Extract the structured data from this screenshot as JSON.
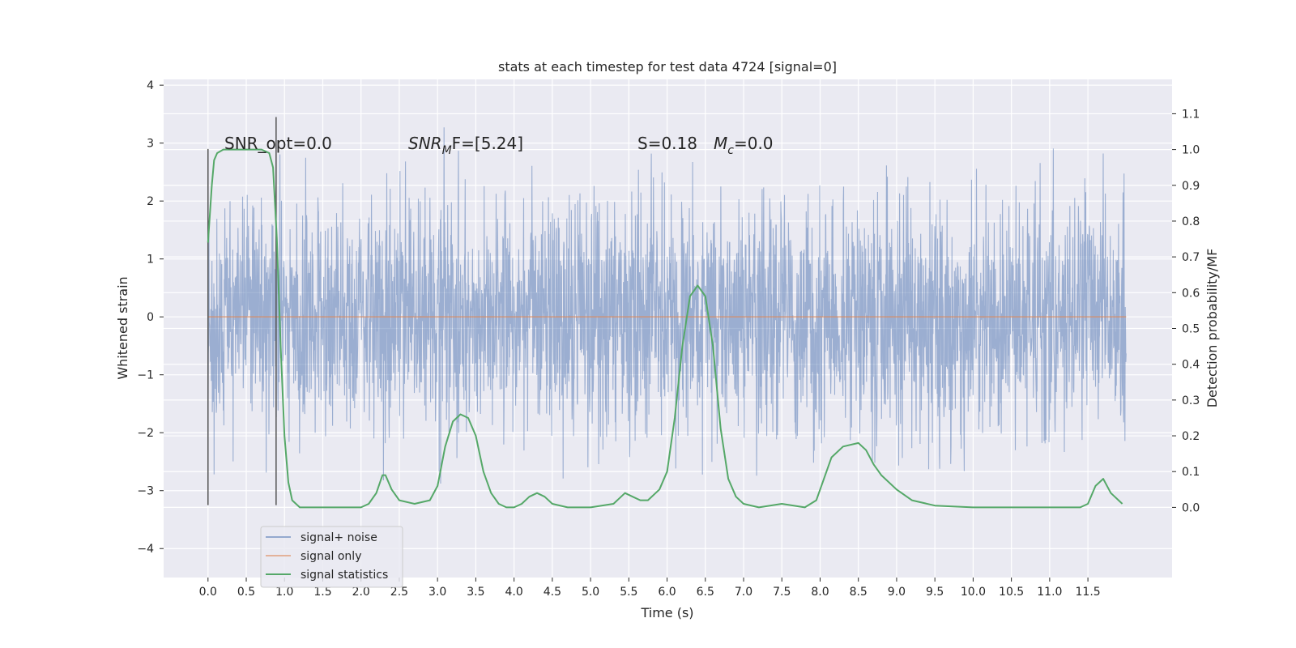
{
  "chart_data": {
    "type": "line",
    "title": "stats at each timestep for test data 4724 [signal=0]",
    "xlabel": "Time (s)",
    "ylabel": "Whitened strain",
    "y2label": "Detection probability/MF",
    "xlim": [
      -0.58,
      12.6
    ],
    "ylim": [
      -4.5,
      4.1
    ],
    "y2lim": [
      -0.196,
      1.196
    ],
    "x_ticks": [
      0.0,
      0.5,
      1.0,
      1.5,
      2.0,
      2.5,
      3.0,
      3.5,
      4.0,
      4.5,
      5.0,
      5.5,
      6.0,
      6.5,
      7.0,
      7.5,
      8.0,
      8.5,
      9.0,
      9.5,
      10.0,
      10.5,
      11.0,
      11.5
    ],
    "x_tick_labels": [
      "0.0",
      "0.5",
      "1.0",
      "1.5",
      "2.0",
      "2.5",
      "3.0",
      "3.5",
      "4.0",
      "4.5",
      "5.0",
      "5.5",
      "6.0",
      "6.5",
      "7.0",
      "7.5",
      "8.0",
      "8.5",
      "9.0",
      "9.5",
      "10.0",
      "10.5",
      "11.0",
      "11.5"
    ],
    "y_ticks": [
      -4,
      -3,
      -2,
      -1,
      0,
      1,
      2,
      3,
      4
    ],
    "y_tick_labels": [
      "−4",
      "−3",
      "−2",
      "−1",
      "0",
      "1",
      "2",
      "3",
      "4"
    ],
    "y2_ticks": [
      0.0,
      0.1,
      0.2,
      0.3,
      0.4,
      0.5,
      0.6,
      0.7,
      0.8,
      0.9,
      1.0,
      1.1
    ],
    "y2_tick_labels": [
      "0.0",
      "0.1",
      "0.2",
      "0.3",
      "0.4",
      "0.5",
      "0.6",
      "0.7",
      "0.8",
      "0.9",
      "1.0",
      "1.1"
    ],
    "grid": true,
    "legend_position": "bottom-left",
    "series": [
      {
        "name": "signal+ noise",
        "color": "#4c72b0",
        "axis": "left",
        "kind": "noise",
        "x_range": [
          0.0,
          12.0
        ],
        "amplitude_rms": 1.0,
        "y_extent": [
          -4.05,
          3.75
        ]
      },
      {
        "name": "signal only",
        "color": "#dd8452",
        "axis": "left",
        "x": [
          0.0,
          12.0
        ],
        "y": [
          0.0,
          0.0
        ]
      },
      {
        "name": "signal statistics",
        "color": "#55a868",
        "axis": "right",
        "x": [
          0.0,
          0.05,
          0.08,
          0.12,
          0.2,
          0.3,
          0.5,
          0.7,
          0.8,
          0.85,
          0.9,
          0.95,
          1.0,
          1.05,
          1.1,
          1.2,
          1.5,
          2.0,
          2.1,
          2.2,
          2.28,
          2.32,
          2.4,
          2.5,
          2.7,
          2.9,
          3.0,
          3.1,
          3.2,
          3.3,
          3.4,
          3.5,
          3.6,
          3.7,
          3.8,
          3.9,
          4.0,
          4.1,
          4.2,
          4.3,
          4.4,
          4.5,
          4.7,
          5.0,
          5.3,
          5.45,
          5.55,
          5.65,
          5.75,
          5.9,
          6.0,
          6.1,
          6.2,
          6.3,
          6.4,
          6.5,
          6.6,
          6.7,
          6.8,
          6.9,
          7.0,
          7.2,
          7.5,
          7.8,
          7.95,
          8.05,
          8.15,
          8.3,
          8.5,
          8.6,
          8.7,
          8.8,
          9.0,
          9.2,
          9.5,
          10.0,
          11.0,
          11.4,
          11.5,
          11.6,
          11.7,
          11.8,
          11.95
        ],
        "y": [
          0.74,
          0.9,
          0.97,
          0.99,
          1.0,
          1.0,
          1.0,
          1.0,
          0.99,
          0.95,
          0.75,
          0.45,
          0.2,
          0.07,
          0.02,
          0.0,
          0.0,
          0.0,
          0.01,
          0.04,
          0.09,
          0.09,
          0.05,
          0.02,
          0.01,
          0.02,
          0.06,
          0.17,
          0.24,
          0.26,
          0.25,
          0.2,
          0.1,
          0.04,
          0.01,
          0.0,
          0.0,
          0.01,
          0.03,
          0.04,
          0.03,
          0.01,
          0.0,
          0.0,
          0.01,
          0.04,
          0.03,
          0.02,
          0.02,
          0.05,
          0.1,
          0.25,
          0.45,
          0.59,
          0.62,
          0.59,
          0.45,
          0.22,
          0.08,
          0.03,
          0.01,
          0.0,
          0.01,
          0.0,
          0.02,
          0.08,
          0.14,
          0.17,
          0.18,
          0.16,
          0.12,
          0.09,
          0.05,
          0.02,
          0.005,
          0.0,
          0.0,
          0.0,
          0.01,
          0.06,
          0.08,
          0.04,
          0.01
        ]
      }
    ],
    "vlines": [
      {
        "x": 0.0,
        "y_range": [
          -3.25,
          2.9
        ],
        "color": "#555555"
      },
      {
        "x": 0.89,
        "y_range": [
          -3.25,
          3.45
        ],
        "color": "#555555"
      }
    ],
    "annotations": [
      {
        "kind": "plain",
        "text": "SNR_opt=0.0"
      },
      {
        "kind": "snrmf",
        "base": "SNR",
        "sub": "M",
        "rest": "F=[5.24]"
      },
      {
        "kind": "plain",
        "text": "S=0.18"
      },
      {
        "kind": "mc",
        "base": "M",
        "sub": "c",
        "rest": "=0.0"
      }
    ]
  }
}
